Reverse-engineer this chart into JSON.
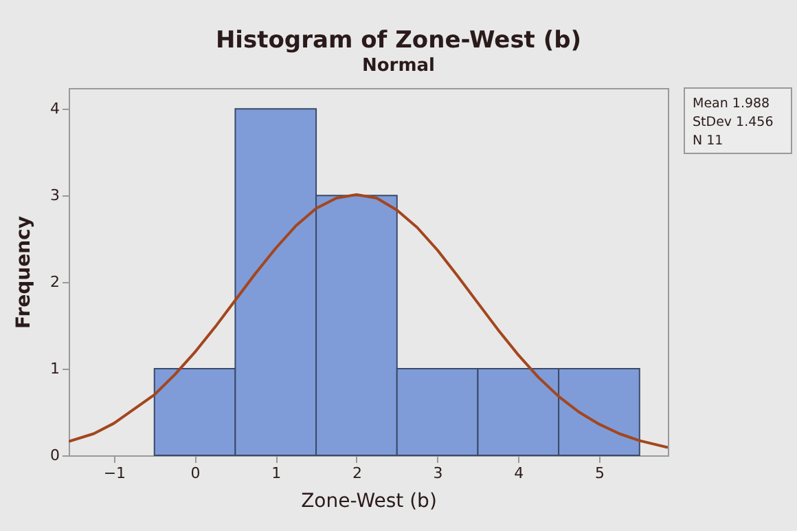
{
  "chart_data": {
    "type": "histogram",
    "title": "Histogram of Zone-West (b)",
    "subtitle": "Normal",
    "xlabel": "Zone-West (b)",
    "ylabel": "Frequency",
    "series": [
      {
        "bins": [
          -0.5,
          0.5,
          1.5,
          2.5,
          3.5,
          4.5,
          5.5
        ],
        "values": [
          1,
          4,
          3,
          1,
          1,
          1
        ],
        "color": "#7f9cd8"
      },
      {
        "type": "line",
        "color": "#a3461f",
        "x": [
          -1.56,
          -1.25,
          -1,
          -0.5,
          -0.25,
          0,
          0.25,
          0.5,
          0.75,
          1,
          1.25,
          1.5,
          1.75,
          2,
          2.25,
          2.5,
          2.75,
          3,
          3.25,
          3.5,
          3.75,
          4,
          4.25,
          4.5,
          4.75,
          5,
          5.25,
          5.5,
          5.85
        ],
        "values": [
          0.16,
          0.25,
          0.37,
          0.7,
          0.93,
          1.19,
          1.48,
          1.79,
          2.1,
          2.39,
          2.65,
          2.85,
          2.97,
          3.01,
          2.97,
          2.83,
          2.63,
          2.37,
          2.07,
          1.76,
          1.45,
          1.16,
          0.9,
          0.68,
          0.5,
          0.36,
          0.25,
          0.17,
          0.09
        ]
      }
    ],
    "xlim": [
      -1.56,
      5.85
    ],
    "xticks": [
      -1,
      0,
      1,
      2,
      3,
      4,
      5
    ],
    "ylim": [
      0,
      4.24
    ],
    "yticks": [
      0,
      1,
      2,
      3,
      4
    ],
    "grid": false,
    "annotations": [
      "Mean 1.988",
      "StDev 1.456",
      "N 11"
    ]
  }
}
